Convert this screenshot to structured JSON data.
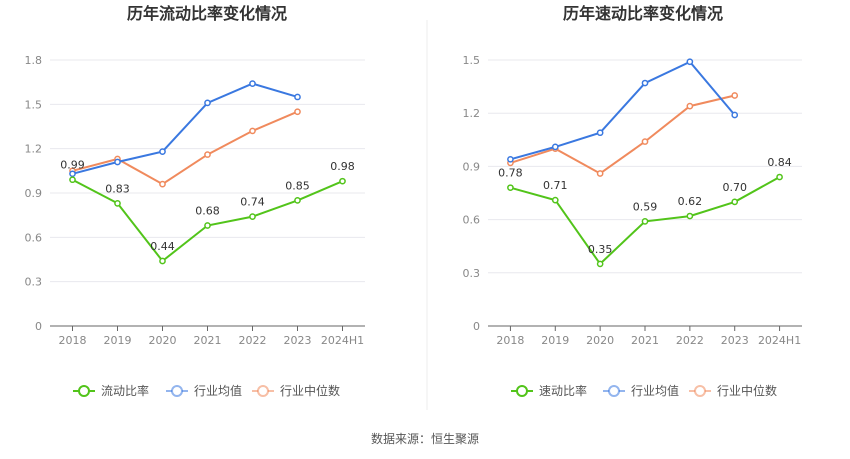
{
  "chart_data": [
    {
      "type": "line",
      "title": "历年流动比率变化情况",
      "categories": [
        "2018",
        "2019",
        "2020",
        "2021",
        "2022",
        "2023",
        "2024H1"
      ],
      "ylim": [
        0,
        1.8
      ],
      "yticks": [
        "0",
        "0.3",
        "0.6",
        "0.9",
        "1.2",
        "1.5",
        "1.8"
      ],
      "grid": true,
      "legend_position": "bottom",
      "series": [
        {
          "name": "流动比率",
          "color": "#52c41a",
          "values": [
            0.99,
            0.83,
            0.44,
            0.68,
            0.74,
            0.85,
            0.98
          ],
          "labels": [
            "0.99",
            "0.83",
            "0.44",
            "0.68",
            "0.74",
            "0.85",
            "0.98"
          ]
        },
        {
          "name": "行业均值",
          "color": "#3a78e0",
          "values": [
            1.03,
            1.11,
            1.18,
            1.51,
            1.64,
            1.55,
            null
          ]
        },
        {
          "name": "行业中位数",
          "color": "#f08a5d",
          "values": [
            1.05,
            1.13,
            0.96,
            1.16,
            1.32,
            1.45,
            null
          ]
        }
      ]
    },
    {
      "type": "line",
      "title": "历年速动比率变化情况",
      "categories": [
        "2018",
        "2019",
        "2020",
        "2021",
        "2022",
        "2023",
        "2024H1"
      ],
      "ylim": [
        0,
        1.5
      ],
      "yticks": [
        "0",
        "0.3",
        "0.6",
        "0.9",
        "1.2",
        "1.5"
      ],
      "grid": true,
      "legend_position": "bottom",
      "series": [
        {
          "name": "速动比率",
          "color": "#52c41a",
          "values": [
            0.78,
            0.71,
            0.35,
            0.59,
            0.62,
            0.7,
            0.84
          ],
          "labels": [
            "0.78",
            "0.71",
            "0.35",
            "0.59",
            "0.62",
            "0.70",
            "0.84"
          ]
        },
        {
          "name": "行业均值",
          "color": "#3a78e0",
          "values": [
            0.94,
            1.01,
            1.09,
            1.37,
            1.49,
            1.19,
            null
          ]
        },
        {
          "name": "行业中位数",
          "color": "#f08a5d",
          "values": [
            0.92,
            1.0,
            0.86,
            1.04,
            1.24,
            1.3,
            null
          ]
        }
      ]
    }
  ],
  "footer": {
    "source": "数据来源：恒生聚源"
  }
}
